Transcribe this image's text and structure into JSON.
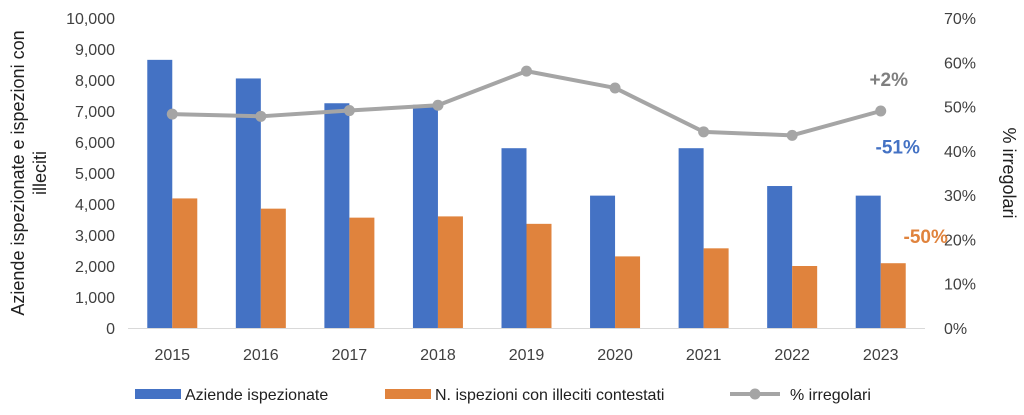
{
  "chart_data": {
    "type": "bar",
    "categories": [
      "2015",
      "2016",
      "2017",
      "2018",
      "2019",
      "2020",
      "2021",
      "2022",
      "2023"
    ],
    "series": [
      {
        "name": "Aziende ispezionate",
        "axis": "left",
        "kind": "bar",
        "color": "#4472C4",
        "values": [
          8650,
          8050,
          7250,
          7200,
          5800,
          4270,
          5800,
          4580,
          4270
        ]
      },
      {
        "name": "N. ispezioni con illeciti contestati",
        "axis": "left",
        "kind": "bar",
        "color": "#E0833D",
        "values": [
          4180,
          3850,
          3560,
          3600,
          3360,
          2310,
          2570,
          2000,
          2090
        ]
      },
      {
        "name": "% irregolari",
        "axis": "right",
        "kind": "line",
        "color": "#A5A5A5",
        "values": [
          48.3,
          47.8,
          49.1,
          50.3,
          58.0,
          54.2,
          44.3,
          43.5,
          49.0
        ]
      }
    ],
    "ylabel": "Aziende ispezionate e ispezioni con illeciti",
    "ylabel_lines": [
      "Aziende ispezionate e ispezioni con",
      "illeciti"
    ],
    "y2label": "% irregolari",
    "ylim": [
      0,
      10000
    ],
    "y_ticks": [
      "0",
      "1,000",
      "2,000",
      "3,000",
      "4,000",
      "5,000",
      "6,000",
      "7,000",
      "8,000",
      "9,000",
      "10,000"
    ],
    "y2lim": [
      0,
      70
    ],
    "y2_ticks": [
      "0%",
      "10%",
      "20%",
      "30%",
      "40%",
      "50%",
      "60%",
      "70%"
    ],
    "annotations": [
      {
        "text": "+2%",
        "color": "#7F7F7F"
      },
      {
        "text": "-51%",
        "color": "#4472C4"
      },
      {
        "text": "-50%",
        "color": "#E0833D"
      }
    ],
    "grid": false,
    "legend_position": "bottom"
  }
}
